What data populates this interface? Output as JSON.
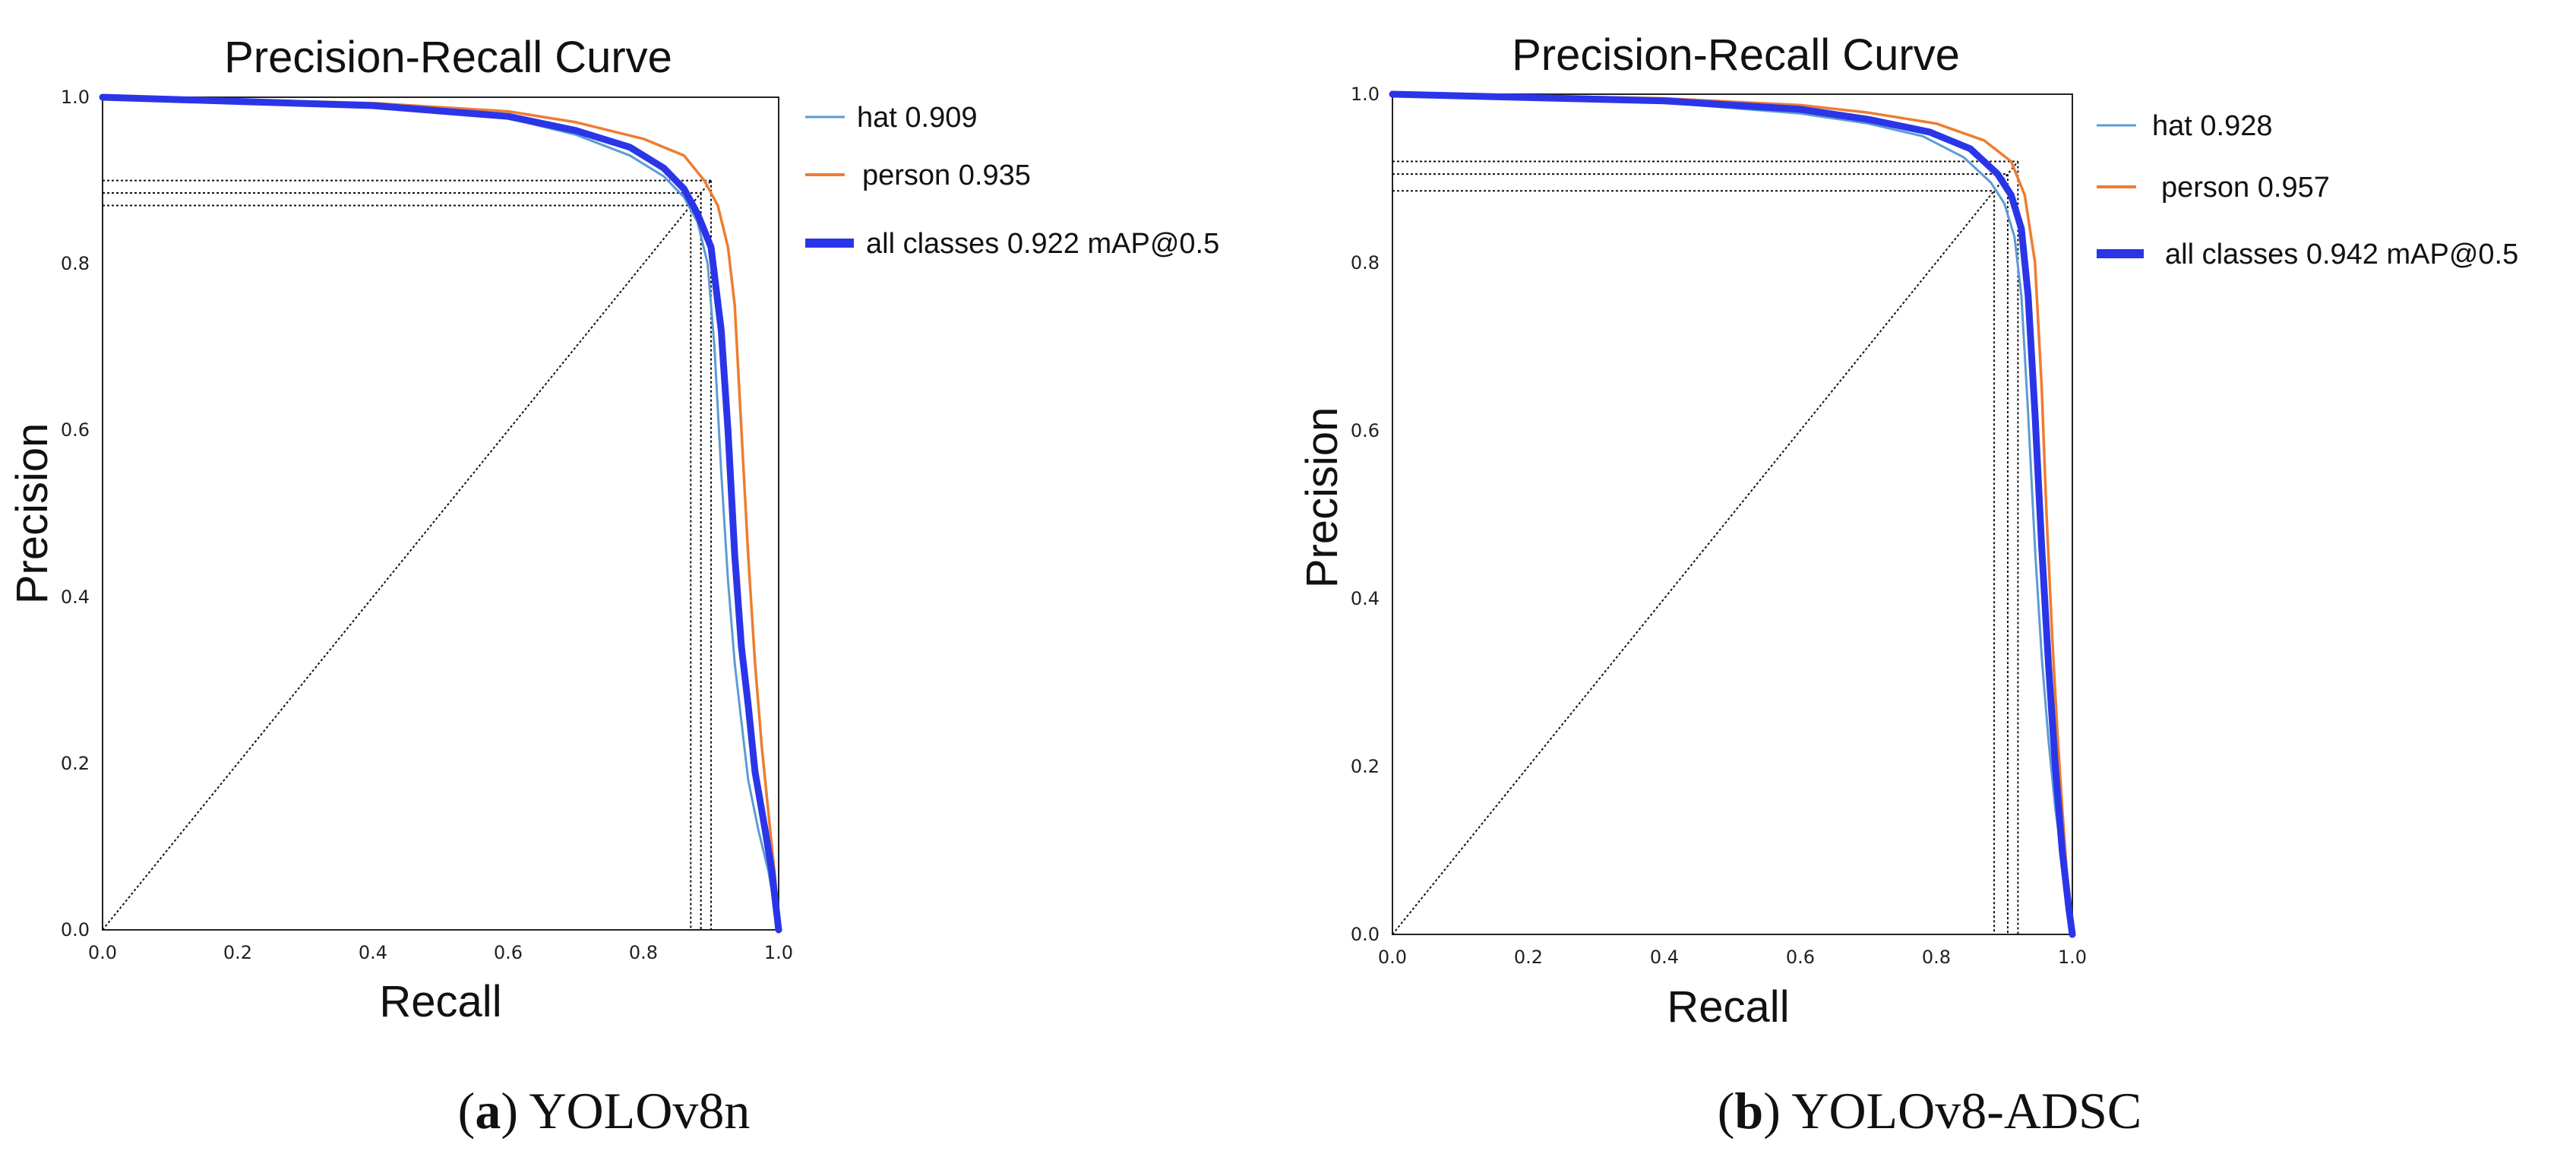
{
  "chart_data": [
    {
      "id": "a",
      "type": "line",
      "title": "Precision-Recall Curve",
      "xlabel": "Recall",
      "ylabel": "Precision",
      "xlim": [
        0,
        1
      ],
      "ylim": [
        0,
        1
      ],
      "xticks": [
        "0.0",
        "0.2",
        "0.4",
        "0.6",
        "0.8",
        "1.0"
      ],
      "yticks": [
        "0.0",
        "0.2",
        "0.4",
        "0.6",
        "0.8",
        "1.0"
      ],
      "caption_letter": "a",
      "caption_text": "YOLOv8n",
      "series": [
        {
          "name": "hat 0.909",
          "color": "#5b9bd5",
          "x": [
            0,
            0.2,
            0.4,
            0.6,
            0.7,
            0.78,
            0.83,
            0.86,
            0.88,
            0.895,
            0.905,
            0.915,
            0.925,
            0.935,
            0.945,
            0.955,
            0.97,
            0.985,
            1.0
          ],
          "y": [
            1.0,
            0.995,
            0.99,
            0.975,
            0.955,
            0.93,
            0.905,
            0.88,
            0.85,
            0.8,
            0.7,
            0.55,
            0.42,
            0.32,
            0.25,
            0.18,
            0.12,
            0.07,
            0.0
          ]
        },
        {
          "name": "person 0.935",
          "color": "#ed7d31",
          "x": [
            0,
            0.2,
            0.4,
            0.6,
            0.7,
            0.8,
            0.86,
            0.89,
            0.91,
            0.925,
            0.935,
            0.945,
            0.955,
            0.965,
            0.975,
            0.985,
            0.995,
            1.0
          ],
          "y": [
            1.0,
            0.997,
            0.993,
            0.983,
            0.97,
            0.95,
            0.93,
            0.9,
            0.87,
            0.82,
            0.75,
            0.6,
            0.45,
            0.32,
            0.22,
            0.14,
            0.06,
            0.0
          ]
        },
        {
          "name": "all classes 0.922 mAP@0.5",
          "color": "#2b35e8",
          "x": [
            0,
            0.2,
            0.4,
            0.6,
            0.7,
            0.78,
            0.83,
            0.86,
            0.88,
            0.9,
            0.915,
            0.925,
            0.935,
            0.945,
            0.955,
            0.965,
            0.98,
            0.99,
            1.0
          ],
          "y": [
            1.0,
            0.995,
            0.99,
            0.977,
            0.96,
            0.94,
            0.915,
            0.89,
            0.86,
            0.82,
            0.72,
            0.6,
            0.45,
            0.34,
            0.27,
            0.19,
            0.12,
            0.07,
            0.0
          ]
        }
      ],
      "reference_points": [
        [
          0.87,
          0.87
        ],
        [
          0.885,
          0.885
        ],
        [
          0.9,
          0.9
        ]
      ]
    },
    {
      "id": "b",
      "type": "line",
      "title": "Precision-Recall Curve",
      "xlabel": "Recall",
      "ylabel": "Precision",
      "xlim": [
        0,
        1
      ],
      "ylim": [
        0,
        1
      ],
      "xticks": [
        "0.0",
        "0.2",
        "0.4",
        "0.6",
        "0.8",
        "1.0"
      ],
      "yticks": [
        "0.0",
        "0.2",
        "0.4",
        "0.6",
        "0.8",
        "1.0"
      ],
      "caption_letter": "b",
      "caption_text": "YOLOv8-ADSC",
      "series": [
        {
          "name": "hat 0.928",
          "color": "#5b9bd5",
          "x": [
            0,
            0.2,
            0.4,
            0.6,
            0.7,
            0.78,
            0.84,
            0.88,
            0.9,
            0.915,
            0.925,
            0.935,
            0.945,
            0.955,
            0.965,
            0.975,
            0.985,
            0.995,
            1.0
          ],
          "y": [
            1.0,
            0.995,
            0.99,
            0.977,
            0.965,
            0.95,
            0.925,
            0.895,
            0.87,
            0.83,
            0.76,
            0.62,
            0.46,
            0.33,
            0.23,
            0.15,
            0.09,
            0.04,
            0.0
          ]
        },
        {
          "name": "person 0.957",
          "color": "#ed7d31",
          "x": [
            0,
            0.2,
            0.4,
            0.6,
            0.7,
            0.8,
            0.87,
            0.91,
            0.93,
            0.945,
            0.955,
            0.962,
            0.97,
            0.978,
            0.986,
            0.993,
            1.0
          ],
          "y": [
            1.0,
            0.998,
            0.995,
            0.987,
            0.978,
            0.965,
            0.945,
            0.92,
            0.88,
            0.8,
            0.65,
            0.5,
            0.36,
            0.24,
            0.14,
            0.06,
            0.0
          ]
        },
        {
          "name": "all classes 0.942 mAP@0.5",
          "color": "#2b35e8",
          "x": [
            0,
            0.2,
            0.4,
            0.6,
            0.7,
            0.79,
            0.85,
            0.89,
            0.91,
            0.925,
            0.935,
            0.945,
            0.955,
            0.965,
            0.975,
            0.985,
            0.995,
            1.0
          ],
          "y": [
            1.0,
            0.996,
            0.992,
            0.982,
            0.97,
            0.955,
            0.935,
            0.905,
            0.88,
            0.84,
            0.76,
            0.62,
            0.46,
            0.32,
            0.2,
            0.1,
            0.03,
            0.0
          ]
        }
      ],
      "reference_points": [
        [
          0.885,
          0.885
        ],
        [
          0.905,
          0.905
        ],
        [
          0.92,
          0.92
        ]
      ]
    }
  ]
}
